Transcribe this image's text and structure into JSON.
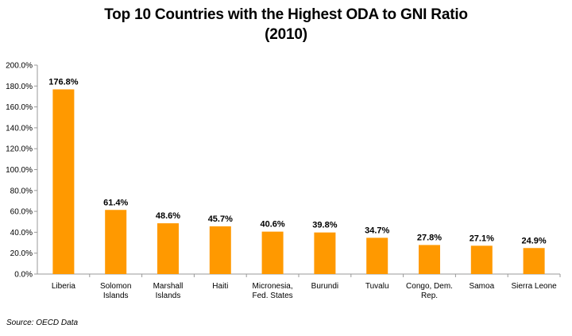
{
  "chart_data": {
    "type": "bar",
    "title_line1": "Top 10 Countries with the Highest ODA to GNI Ratio",
    "title_line2": "(2010)",
    "categories": [
      [
        "Liberia"
      ],
      [
        "Solomon",
        "Islands"
      ],
      [
        "Marshall",
        "Islands"
      ],
      [
        "Haiti"
      ],
      [
        "Micronesia,",
        "Fed. States"
      ],
      [
        "Burundi"
      ],
      [
        "Tuvalu"
      ],
      [
        "Congo, Dem.",
        "Rep."
      ],
      [
        "Samoa"
      ],
      [
        "Sierra Leone"
      ]
    ],
    "values": [
      176.8,
      61.4,
      48.6,
      45.7,
      40.6,
      39.8,
      34.7,
      27.8,
      27.1,
      24.9
    ],
    "value_labels": [
      "176.8%",
      "61.4%",
      "48.6%",
      "45.7%",
      "40.6%",
      "39.8%",
      "34.7%",
      "27.8%",
      "27.1%",
      "24.9%"
    ],
    "yticks": [
      0,
      20,
      40,
      60,
      80,
      100,
      120,
      140,
      160,
      180,
      200
    ],
    "ytick_labels": [
      "0.0%",
      "20.0%",
      "40.0%",
      "60.0%",
      "80.0%",
      "100.0%",
      "120.0%",
      "140.0%",
      "160.0%",
      "180.0%",
      "200.0%"
    ],
    "ylim": [
      0,
      200
    ],
    "grid": false,
    "bar_color": "#FF9900",
    "source": "Source: OECD Data"
  }
}
